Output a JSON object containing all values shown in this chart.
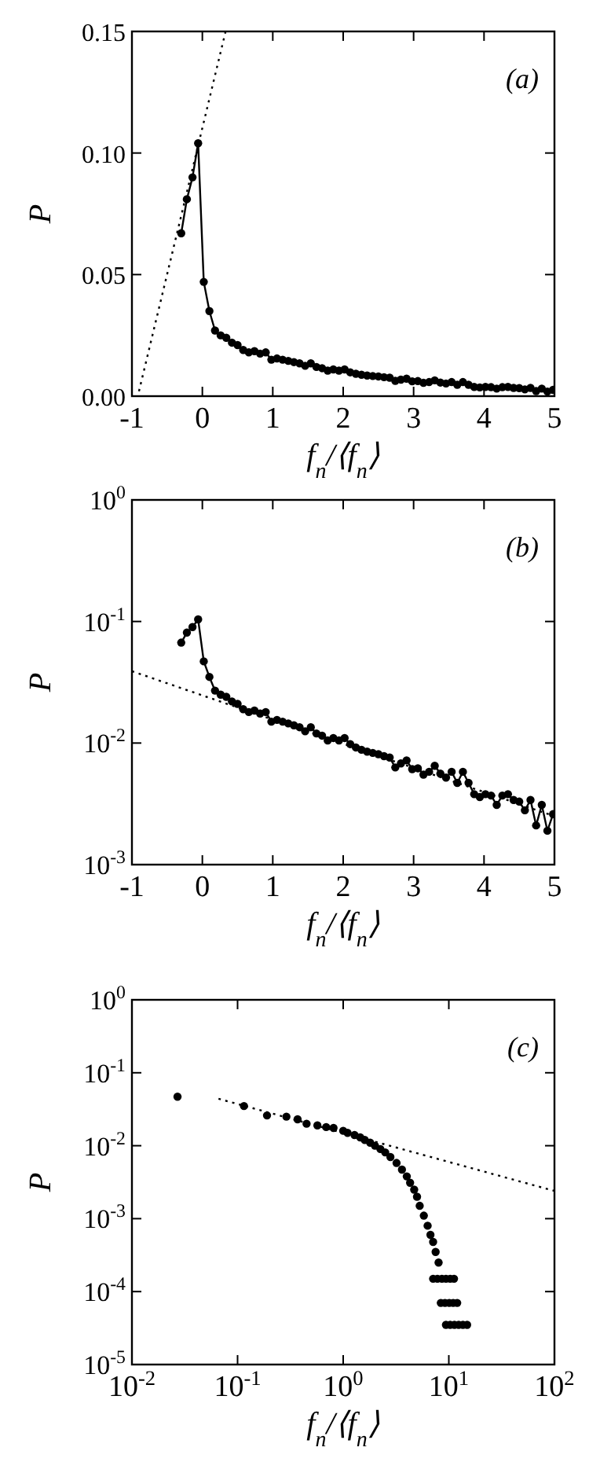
{
  "chart_data": [
    {
      "type": "line",
      "xlabel": "f$_{n}$/⟨f$_{n}$⟩",
      "ylabel": "P",
      "annotations": [
        "(a)"
      ],
      "marker": "circle",
      "xlim": [
        -1,
        5
      ],
      "ylim": [
        0,
        0.15
      ],
      "xticks": [
        -1,
        0,
        1,
        2,
        3,
        4,
        5
      ],
      "yticks": [
        {
          "value": 0,
          "label": "0.00"
        },
        {
          "value": 0.05,
          "label": "0.05"
        },
        {
          "value": 0.1,
          "label": "0.10"
        },
        {
          "value": 0.15,
          "label": "0.15"
        }
      ],
      "grid": false,
      "series": [
        {
          "color": "#000000",
          "x": [
            -0.3,
            -0.22,
            -0.14,
            -0.06,
            0.02,
            0.1,
            0.18,
            0.26,
            0.34,
            0.42,
            0.5,
            0.58,
            0.66,
            0.74,
            0.82,
            0.9,
            0.98,
            1.06,
            1.14,
            1.22,
            1.3,
            1.38,
            1.46,
            1.54,
            1.62,
            1.7,
            1.78,
            1.86,
            1.94,
            2.02,
            2.1,
            2.18,
            2.26,
            2.34,
            2.42,
            2.5,
            2.58,
            2.66,
            2.74,
            2.82,
            2.9,
            2.98,
            3.06,
            3.14,
            3.22,
            3.3,
            3.38,
            3.46,
            3.54,
            3.62,
            3.7,
            3.78,
            3.86,
            3.94,
            4.02,
            4.1,
            4.18,
            4.26,
            4.34,
            4.42,
            4.5,
            4.58,
            4.66,
            4.74,
            4.82,
            4.9,
            4.98
          ],
          "values": [
            0.067,
            0.081,
            0.09,
            0.104,
            0.047,
            0.035,
            0.027,
            0.025,
            0.024,
            0.022,
            0.021,
            0.019,
            0.018,
            0.0185,
            0.0175,
            0.018,
            0.015,
            0.0155,
            0.015,
            0.0145,
            0.014,
            0.0135,
            0.0125,
            0.0135,
            0.012,
            0.0115,
            0.0105,
            0.011,
            0.0105,
            0.011,
            0.0098,
            0.0092,
            0.0088,
            0.0085,
            0.0083,
            0.0081,
            0.0078,
            0.0076,
            0.0063,
            0.0068,
            0.0072,
            0.0061,
            0.0062,
            0.0055,
            0.0058,
            0.0065,
            0.0056,
            0.0052,
            0.0058,
            0.0047,
            0.0058,
            0.0047,
            0.0038,
            0.0036,
            0.0038,
            0.0037,
            0.0031,
            0.0037,
            0.0038,
            0.0034,
            0.0033,
            0.0028,
            0.0034,
            0.0021,
            0.0031,
            0.0019,
            0.0026
          ]
        },
        {
          "color": "#000000",
          "type": "line",
          "marker": "none",
          "line_style": "dotted",
          "x": [
            -0.9,
            0.33
          ],
          "values": [
            0.002,
            0.15
          ]
        }
      ]
    },
    {
      "type": "line",
      "xlabel": "f$_{n}$/⟨f$_{n}$⟩",
      "ylabel": "P",
      "annotations": [
        "(b)"
      ],
      "marker": "circle",
      "log": "y",
      "xlim": [
        -1,
        5
      ],
      "ylim": [
        0.001,
        1
      ],
      "xticks": [
        -1,
        0,
        1,
        2,
        3,
        4,
        5
      ],
      "yticks": [
        {
          "value": 0.001,
          "label": "10$^{-3}$"
        },
        {
          "value": 0.01,
          "label": "10$^{-2}$"
        },
        {
          "value": 0.1,
          "label": "10$^{-1}$"
        },
        {
          "value": 1,
          "label": "10$^{0}$"
        }
      ],
      "grid": false,
      "series": [
        {
          "color": "#000000",
          "x": [
            -0.3,
            -0.22,
            -0.14,
            -0.06,
            0.02,
            0.1,
            0.18,
            0.26,
            0.34,
            0.42,
            0.5,
            0.58,
            0.66,
            0.74,
            0.82,
            0.9,
            0.98,
            1.06,
            1.14,
            1.22,
            1.3,
            1.38,
            1.46,
            1.54,
            1.62,
            1.7,
            1.78,
            1.86,
            1.94,
            2.02,
            2.1,
            2.18,
            2.26,
            2.34,
            2.42,
            2.5,
            2.58,
            2.66,
            2.74,
            2.82,
            2.9,
            2.98,
            3.06,
            3.14,
            3.22,
            3.3,
            3.38,
            3.46,
            3.54,
            3.62,
            3.7,
            3.78,
            3.86,
            3.94,
            4.02,
            4.1,
            4.18,
            4.26,
            4.34,
            4.42,
            4.5,
            4.58,
            4.66,
            4.74,
            4.82,
            4.9,
            4.98
          ],
          "values": [
            0.067,
            0.081,
            0.09,
            0.104,
            0.047,
            0.035,
            0.027,
            0.025,
            0.024,
            0.022,
            0.021,
            0.019,
            0.018,
            0.0185,
            0.0175,
            0.018,
            0.015,
            0.0155,
            0.015,
            0.0145,
            0.014,
            0.0135,
            0.0125,
            0.0135,
            0.012,
            0.0115,
            0.0105,
            0.011,
            0.0105,
            0.011,
            0.0098,
            0.0092,
            0.0088,
            0.0085,
            0.0083,
            0.0081,
            0.0078,
            0.0076,
            0.0063,
            0.0068,
            0.0072,
            0.0061,
            0.0062,
            0.0055,
            0.0058,
            0.0065,
            0.0056,
            0.0052,
            0.0058,
            0.0047,
            0.0058,
            0.0047,
            0.0038,
            0.0036,
            0.0038,
            0.0037,
            0.0031,
            0.0037,
            0.0038,
            0.0034,
            0.0033,
            0.0028,
            0.0034,
            0.0021,
            0.0031,
            0.0019,
            0.0026
          ]
        },
        {
          "color": "#000000",
          "type": "line",
          "marker": "none",
          "line_style": "dotted",
          "x": [
            -1,
            5
          ],
          "values": [
            0.039,
            0.0025
          ]
        }
      ]
    },
    {
      "type": "scatter",
      "xlabel": "f$_{n}$/⟨f$_{n}$⟩",
      "ylabel": "P",
      "annotations": [
        "(c)"
      ],
      "marker": "circle",
      "log": "xy",
      "xlim": [
        0.01,
        100
      ],
      "ylim": [
        1e-05,
        1
      ],
      "xticks": [
        {
          "value": 0.01,
          "label": "10$^{-2}$"
        },
        {
          "value": 0.1,
          "label": "10$^{-1}$"
        },
        {
          "value": 1,
          "label": "10$^{0}$"
        },
        {
          "value": 10,
          "label": "10$^{1}$"
        },
        {
          "value": 100,
          "label": "10$^{2}$"
        }
      ],
      "yticks": [
        {
          "value": 1e-05,
          "label": "10$^{-5}$"
        },
        {
          "value": 0.0001,
          "label": "10$^{-4}$"
        },
        {
          "value": 0.001,
          "label": "10$^{-3}$"
        },
        {
          "value": 0.01,
          "label": "10$^{-2}$"
        },
        {
          "value": 0.1,
          "label": "10$^{-1}$"
        },
        {
          "value": 1,
          "label": "10$^{0}$"
        }
      ],
      "grid": false,
      "series": [
        {
          "color": "#000000",
          "x": [
            0.027,
            0.115,
            0.19,
            0.29,
            0.37,
            0.45,
            0.57,
            0.69,
            0.81,
            1.0,
            1.1,
            1.28,
            1.45,
            1.6,
            1.8,
            2.0,
            2.25,
            2.5,
            2.8,
            3.2,
            3.6,
            4.0,
            4.3,
            4.7,
            5.0,
            5.3,
            5.8,
            6.3,
            6.7,
            7.1,
            7.5,
            8.0,
            7.1,
            7.8,
            8.6,
            9.4,
            10.3,
            11.2,
            8.4,
            9.2,
            10.1,
            11.0,
            12.0,
            9.4,
            10.3,
            11.3,
            12.4,
            13.6,
            14.9
          ],
          "values": [
            0.047,
            0.035,
            0.026,
            0.025,
            0.023,
            0.02,
            0.019,
            0.018,
            0.0175,
            0.016,
            0.015,
            0.014,
            0.013,
            0.012,
            0.011,
            0.01,
            0.009,
            0.0081,
            0.007,
            0.0058,
            0.0047,
            0.0038,
            0.0031,
            0.0025,
            0.002,
            0.0015,
            0.0011,
            0.0008,
            0.0006,
            0.00048,
            0.00035,
            0.00025,
            0.00015,
            0.00015,
            0.00015,
            0.00015,
            0.00015,
            0.00015,
            7e-05,
            7e-05,
            7e-05,
            7e-05,
            7e-05,
            3.5e-05,
            3.5e-05,
            3.5e-05,
            3.5e-05,
            3.5e-05,
            3.5e-05
          ]
        },
        {
          "color": "#000000",
          "type": "line",
          "marker": "none",
          "line_style": "dotted",
          "x": [
            0.066,
            100
          ],
          "values": [
            0.044,
            0.0024
          ]
        }
      ]
    }
  ]
}
